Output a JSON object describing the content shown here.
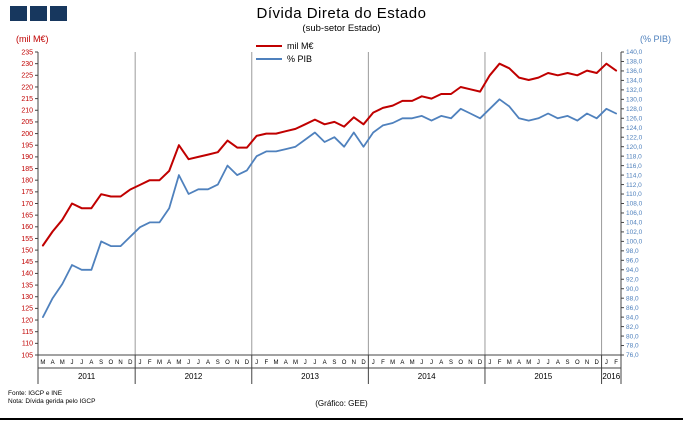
{
  "header": {
    "title": "Dívida Direta do Estado",
    "subtitle": "(sub-setor Estado)"
  },
  "axis_captions": {
    "left": "(mil M€)",
    "right": "(% PIB)"
  },
  "legend": [
    {
      "label": "mil M€",
      "color": "#C00000"
    },
    {
      "label": "% PIB",
      "color": "#4F81BD"
    }
  ],
  "footer": {
    "source": "Fonte: IGCP e INE",
    "note": "Nota: Dívida gerida pelo IGCP",
    "credit": "(Gráfico: GEE)"
  },
  "colors": {
    "red": "#C00000",
    "blue": "#4F81BD",
    "logo": "#17375E"
  },
  "chart_data": {
    "type": "line",
    "title": "Dívida Direta do Estado (sub-setor Estado)",
    "x_months": [
      "M",
      "A",
      "M",
      "J",
      "J",
      "A",
      "S",
      "O",
      "N",
      "D",
      "J",
      "F",
      "M",
      "A",
      "M",
      "J",
      "J",
      "A",
      "S",
      "O",
      "N",
      "D",
      "J",
      "F",
      "M",
      "A",
      "M",
      "J",
      "J",
      "A",
      "S",
      "O",
      "N",
      "D",
      "J",
      "F",
      "M",
      "A",
      "M",
      "J",
      "J",
      "A",
      "S",
      "O",
      "N",
      "D",
      "J",
      "F",
      "M",
      "A",
      "M",
      "J",
      "J",
      "A",
      "S",
      "O",
      "N",
      "D",
      "J",
      "F"
    ],
    "year_groups": [
      {
        "label": "2011",
        "count": 10
      },
      {
        "label": "2012",
        "count": 12
      },
      {
        "label": "2013",
        "count": 12
      },
      {
        "label": "2014",
        "count": 12
      },
      {
        "label": "2015",
        "count": 12
      },
      {
        "label": "2016",
        "count": 2
      }
    ],
    "left_axis": {
      "caption": "(mil M€)",
      "min": 105,
      "max": 235,
      "step": 5,
      "decimals": 0
    },
    "right_axis": {
      "caption": "(% PIB)",
      "min": 76,
      "max": 140,
      "step": 2,
      "decimals": 1
    },
    "series": [
      {
        "id": "mil-me",
        "name": "mil M€",
        "axis": "left",
        "color": "#C00000",
        "width": 2,
        "values": [
          152,
          158,
          163,
          170,
          168,
          168,
          174,
          173,
          173,
          176,
          178,
          180,
          180,
          184,
          195,
          189,
          190,
          191,
          192,
          197,
          194,
          194,
          199,
          200,
          200,
          201,
          202,
          204,
          206,
          204,
          205,
          203,
          207,
          204,
          209,
          211,
          212,
          214,
          214,
          216,
          215,
          217,
          217,
          220,
          219,
          218,
          225,
          230,
          228,
          224,
          223,
          224,
          226,
          225,
          226,
          225,
          227,
          226,
          230,
          227
        ]
      },
      {
        "id": "pib",
        "name": "% PIB",
        "axis": "right",
        "color": "#4F81BD",
        "width": 1.8,
        "values": [
          84,
          88,
          91,
          95,
          94,
          94,
          100,
          99,
          99,
          101,
          103,
          104,
          104,
          107,
          114,
          110,
          111,
          111,
          112,
          116,
          114,
          115,
          118,
          119,
          119,
          119.5,
          120,
          121.5,
          123,
          121,
          122,
          120,
          123,
          120,
          123,
          124.5,
          125,
          126,
          126,
          126.5,
          125.5,
          126.5,
          126,
          128,
          127,
          126,
          128,
          130,
          128.5,
          126,
          125.5,
          126,
          127,
          126,
          126.5,
          125.5,
          127,
          126,
          128,
          127
        ]
      }
    ],
    "grid": "vertical-year-separators",
    "legend_position": "top-center"
  }
}
